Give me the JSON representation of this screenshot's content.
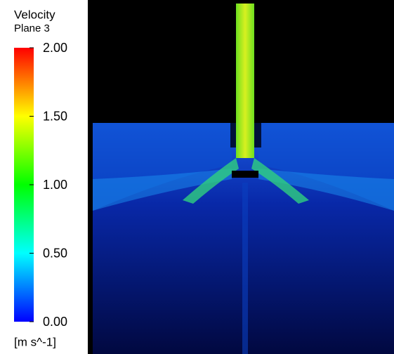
{
  "chart_data": {
    "type": "colorbar",
    "title": "Velocity",
    "subtitle": "Plane 3",
    "unit_label": "[m s^-1]",
    "clim": [
      0,
      2
    ],
    "colormap": [
      "#0000ff",
      "#00ffff",
      "#00ff00",
      "#ffff00",
      "#ff0000"
    ],
    "ticks": [
      {
        "value": 2,
        "label": "2.00"
      },
      {
        "value": 1.5,
        "label": "1.50"
      },
      {
        "value": 1,
        "label": "1.00"
      },
      {
        "value": 0.5,
        "label": "0.50"
      },
      {
        "value": 0,
        "label": "0.00"
      }
    ]
  }
}
